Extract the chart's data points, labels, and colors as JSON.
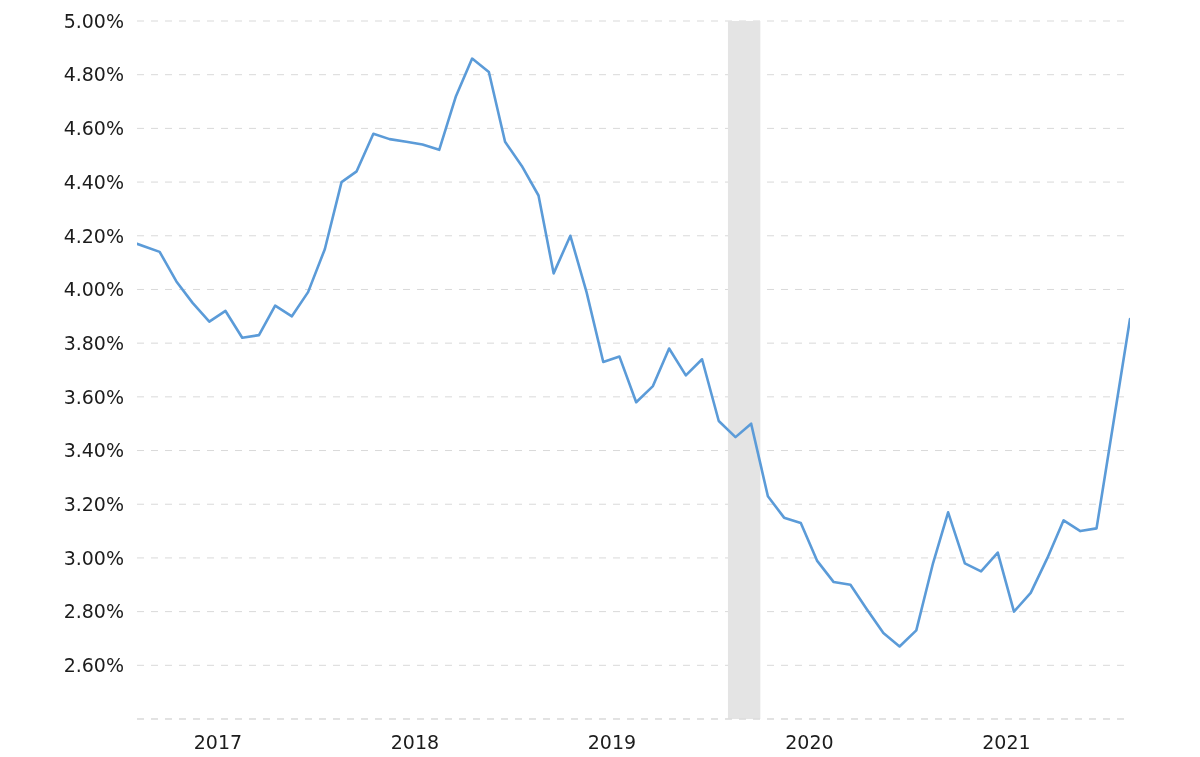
{
  "chart_data": {
    "type": "line",
    "x": [
      "2017-02-01",
      "2017-02-15",
      "2017-03-15",
      "2017-04-15",
      "2017-05-15",
      "2017-06-15",
      "2017-07-15",
      "2017-08-15",
      "2017-09-15",
      "2017-10-15",
      "2017-11-15",
      "2017-12-15",
      "2018-01-15",
      "2018-02-15",
      "2018-03-15",
      "2018-04-15",
      "2018-05-15",
      "2018-06-15",
      "2018-07-15",
      "2018-08-15",
      "2018-09-15",
      "2018-10-15",
      "2018-11-15",
      "2018-12-15",
      "2019-01-15",
      "2019-02-15",
      "2019-03-15",
      "2019-04-15",
      "2019-05-15",
      "2019-06-15",
      "2019-07-15",
      "2019-08-15",
      "2019-09-15",
      "2019-10-15",
      "2019-11-15",
      "2019-12-15",
      "2020-01-15",
      "2020-02-15",
      "2020-03-15",
      "2020-04-15",
      "2020-05-15",
      "2020-06-15",
      "2020-07-15",
      "2020-08-15",
      "2020-09-15",
      "2020-10-15",
      "2020-11-15",
      "2020-12-15",
      "2021-01-15",
      "2021-02-15",
      "2021-03-15",
      "2021-04-15",
      "2021-05-15",
      "2021-06-15",
      "2021-07-15",
      "2021-08-15",
      "2021-09-15",
      "2021-10-15",
      "2021-11-15",
      "2021-12-15",
      "2022-01-15",
      "2022-02-15"
    ],
    "values": [
      4.17,
      4.16,
      4.14,
      4.03,
      3.95,
      3.88,
      3.92,
      3.82,
      3.83,
      3.94,
      3.9,
      3.99,
      4.15,
      4.4,
      4.44,
      4.58,
      4.56,
      4.55,
      4.54,
      4.52,
      4.72,
      4.86,
      4.81,
      4.55,
      4.46,
      4.35,
      4.06,
      4.2,
      3.99,
      3.73,
      3.75,
      3.58,
      3.64,
      3.78,
      3.68,
      3.74,
      3.51,
      3.45,
      3.5,
      3.23,
      3.15,
      3.13,
      2.99,
      2.91,
      2.9,
      2.81,
      2.72,
      2.67,
      2.73,
      2.98,
      3.17,
      2.98,
      2.95,
      3.02,
      2.8,
      2.87,
      3.0,
      3.14,
      3.1,
      3.11,
      3.5,
      3.89
    ],
    "color": "#5b9bd8",
    "xlim": [
      "2017-02-01",
      "2022-02-15"
    ],
    "xticks": [
      {
        "value": "2017-07-01",
        "label": "2017"
      },
      {
        "value": "2018-07-01",
        "label": "2018"
      },
      {
        "value": "2019-07-01",
        "label": "2019"
      },
      {
        "value": "2020-07-01",
        "label": "2020"
      },
      {
        "value": "2021-07-01",
        "label": "2021"
      }
    ],
    "ylim": [
      2.4,
      5.0
    ],
    "yticks": [
      {
        "value": 2.4,
        "label": null
      },
      {
        "value": 2.6,
        "label": "2.60%"
      },
      {
        "value": 2.8,
        "label": "2.80%"
      },
      {
        "value": 3.0,
        "label": "3.00%"
      },
      {
        "value": 3.2,
        "label": "3.20%"
      },
      {
        "value": 3.4,
        "label": "3.40%"
      },
      {
        "value": 3.6,
        "label": "3.60%"
      },
      {
        "value": 3.8,
        "label": "3.80%"
      },
      {
        "value": 4.0,
        "label": "4.00%"
      },
      {
        "value": 4.2,
        "label": "4.20%"
      },
      {
        "value": 4.4,
        "label": "4.40%"
      },
      {
        "value": 4.6,
        "label": "4.60%"
      },
      {
        "value": 4.8,
        "label": "4.80%"
      },
      {
        "value": 5.0,
        "label": "5.00%"
      }
    ],
    "bands": [
      {
        "axis": "x",
        "from": "2020-02-01",
        "to": "2020-04-01",
        "color": "#e4e4e4"
      }
    ],
    "grid": "y"
  }
}
